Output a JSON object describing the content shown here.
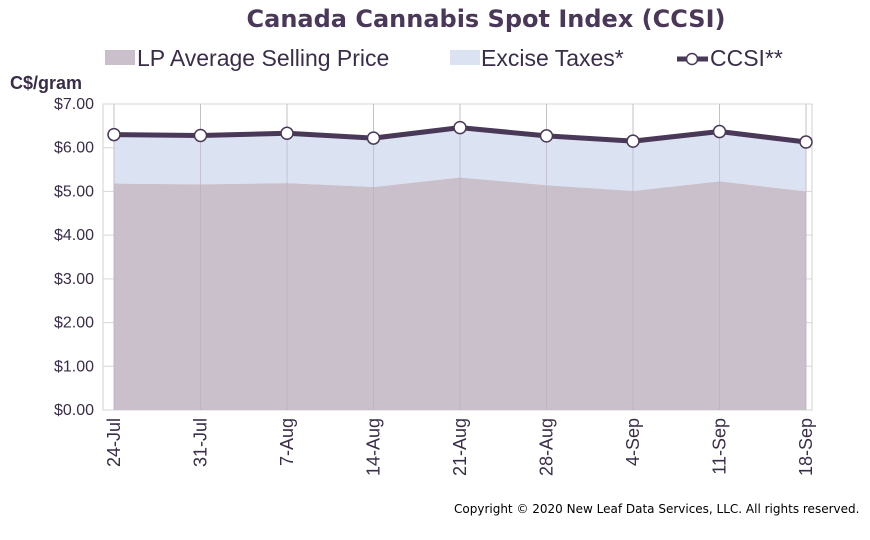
{
  "chart_data": {
    "type": "area",
    "title": "Canada Cannabis Spot Index (CCSI)",
    "ylabel": "C$/gram",
    "categories": [
      "24-Jul",
      "31-Jul",
      "7-Aug",
      "14-Aug",
      "21-Aug",
      "28-Aug",
      "4-Sep",
      "11-Sep",
      "18-Sep"
    ],
    "ylim": [
      0,
      7
    ],
    "yticks": [
      "$0.00",
      "$1.00",
      "$2.00",
      "$3.00",
      "$4.00",
      "$5.00",
      "$6.00",
      "$7.00"
    ],
    "grid": true,
    "legend_position": "top",
    "series": [
      {
        "name": "LP Average Selling Price",
        "kind": "area",
        "color": "#c9c0cc",
        "values": [
          5.18,
          5.16,
          5.19,
          5.1,
          5.32,
          5.14,
          5.01,
          5.23,
          5.0
        ]
      },
      {
        "name": "Excise Taxes*",
        "kind": "area",
        "color": "#dbe2f2",
        "values": [
          1.12,
          1.12,
          1.14,
          1.12,
          1.14,
          1.13,
          1.14,
          1.14,
          1.13
        ]
      },
      {
        "name": "CCSI**",
        "kind": "line",
        "color": "#4a3858",
        "values": [
          6.3,
          6.28,
          6.33,
          6.22,
          6.46,
          6.27,
          6.15,
          6.37,
          6.13
        ]
      }
    ]
  },
  "copyright": "Copyright © 2020 New Leaf Data Services, LLC. All rights reserved."
}
